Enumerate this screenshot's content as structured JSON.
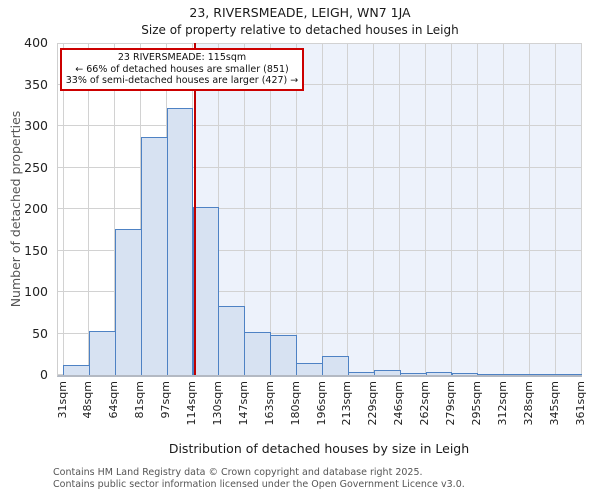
{
  "page": {
    "title": "23, RIVERSMEADE, LEIGH, WN7 1JA",
    "subtitle": "Size of property relative to detached houses in Leigh"
  },
  "chart_data": {
    "type": "bar",
    "title": "23, RIVERSMEADE, LEIGH, WN7 1JA",
    "subtitle": "Size of property relative to detached houses in Leigh",
    "xlabel": "Distribution of detached houses by size in Leigh",
    "ylabel": "Number of detached properties",
    "categories": [
      "31sqm",
      "48sqm",
      "64sqm",
      "81sqm",
      "97sqm",
      "114sqm",
      "130sqm",
      "147sqm",
      "163sqm",
      "180sqm",
      "196sqm",
      "213sqm",
      "229sqm",
      "246sqm",
      "262sqm",
      "279sqm",
      "295sqm",
      "312sqm",
      "328sqm",
      "345sqm",
      "361sqm"
    ],
    "x_numeric_range": [
      31,
      361
    ],
    "values": [
      12,
      53,
      176,
      287,
      322,
      202,
      83,
      52,
      48,
      14,
      23,
      4,
      6,
      2,
      4,
      2,
      1,
      1,
      1,
      1
    ],
    "ylim": [
      0,
      400
    ],
    "ytick_step": 50,
    "grid": true,
    "legend": "none",
    "marker": {
      "value_sqm": 115
    },
    "annotation": {
      "line1": "23 RIVERSMEADE: 115sqm",
      "line2": "← 66% of detached houses are smaller (851)",
      "line3": "33% of semi-detached houses are larger (427) →"
    },
    "colors": {
      "bar_fill": "#d7e2f2",
      "bar_border": "#4e82c4",
      "marker_line": "#c00000",
      "annotation_border": "#cc0000",
      "shade_right_of_marker": "#edf2fb",
      "gridline": "#d2d2d2"
    }
  },
  "footer": {
    "line1": "Contains HM Land Registry data © Crown copyright and database right 2025.",
    "line2": "Contains public sector information licensed under the Open Government Licence v3.0."
  }
}
